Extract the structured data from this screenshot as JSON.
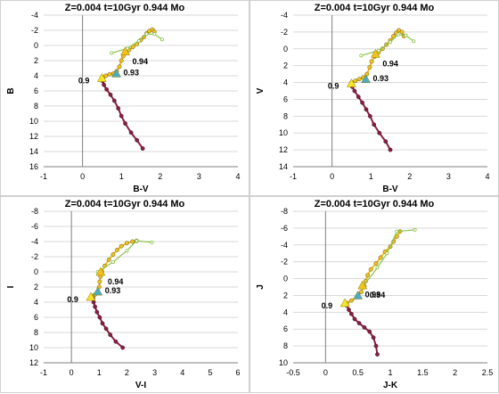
{
  "chart_data": [
    {
      "type": "scatter",
      "title": "Z=0.004  t=10Gyr 0.944 Mo",
      "xlabel": "B-V",
      "ylabel": "B",
      "xlim": [
        -1,
        4
      ],
      "ylim": [
        -4,
        16
      ],
      "y_inverted": true,
      "xticks": [
        -1,
        0,
        1,
        2,
        3,
        4
      ],
      "yticks": [
        -4,
        -2,
        0,
        2,
        4,
        6,
        8,
        10,
        12,
        14,
        16
      ],
      "series": [
        {
          "role": "main_sequence",
          "color": "#8b1e3f",
          "x": [
            1.55,
            1.4,
            1.25,
            1.1,
            1.0,
            0.92,
            0.82,
            0.72,
            0.62,
            0.55,
            0.52,
            0.52
          ],
          "y": [
            13.6,
            12.5,
            11.5,
            10.3,
            9.3,
            8.3,
            7.3,
            6.5,
            5.8,
            5.2,
            4.7,
            4.3
          ]
        },
        {
          "role": "subgiant_giant_branch",
          "color": "#f2c21a",
          "x": [
            0.52,
            0.6,
            0.7,
            0.8,
            0.88,
            0.95,
            1.0,
            1.05,
            1.1,
            1.2,
            1.3,
            1.4,
            1.5,
            1.58,
            1.65,
            1.72,
            1.8,
            1.85
          ],
          "y": [
            4.2,
            4.0,
            3.8,
            3.7,
            3.4,
            2.8,
            2.0,
            1.4,
            1.0,
            0.6,
            0.2,
            -0.2,
            -0.7,
            -1.1,
            -1.6,
            -1.9,
            -2.1,
            -1.8
          ]
        },
        {
          "role": "connector",
          "color": "#8bc34a",
          "x": [
            0.75,
            1.15,
            1.45,
            1.65,
            1.85,
            2.05
          ],
          "y": [
            1.0,
            0.4,
            -0.6,
            -1.5,
            -1.5,
            -0.8
          ]
        }
      ],
      "markers": [
        {
          "label": "0.9",
          "x": 0.5,
          "y": 4.3,
          "shape": "triangle",
          "color": "#f5e427"
        },
        {
          "label": "0.93",
          "x": 0.87,
          "y": 3.7,
          "shape": "triangle",
          "color": "#4bacc6"
        },
        {
          "label": "0.94",
          "x": 1.1,
          "y": 0.8,
          "shape": "triangle",
          "color": "#f2c21a"
        }
      ]
    },
    {
      "type": "scatter",
      "title": "Z=0.004  t=10Gyr 0.944 Mo",
      "xlabel": "B-V",
      "ylabel": "V",
      "xlim": [
        -1,
        4
      ],
      "ylim": [
        -4,
        14
      ],
      "y_inverted": true,
      "xticks": [
        -1,
        0,
        1,
        2,
        3,
        4
      ],
      "yticks": [
        -4,
        -2,
        0,
        2,
        4,
        6,
        8,
        10,
        12,
        14
      ],
      "series": [
        {
          "role": "main_sequence",
          "color": "#8b1e3f",
          "x": [
            1.5,
            1.38,
            1.22,
            1.08,
            0.98,
            0.88,
            0.78,
            0.68,
            0.58,
            0.52,
            0.5
          ],
          "y": [
            12.0,
            11.0,
            10.0,
            9.0,
            8.0,
            7.2,
            6.4,
            5.7,
            5.0,
            4.5,
            4.1
          ]
        },
        {
          "role": "subgiant_giant_branch",
          "color": "#f2c21a",
          "x": [
            0.5,
            0.6,
            0.7,
            0.8,
            0.9,
            0.97,
            1.02,
            1.1,
            1.2,
            1.3,
            1.4,
            1.5,
            1.58,
            1.65,
            1.72,
            1.8,
            1.85
          ],
          "y": [
            4.0,
            3.8,
            3.6,
            3.4,
            3.0,
            2.2,
            1.5,
            0.9,
            0.4,
            0.0,
            -0.5,
            -1.0,
            -1.5,
            -1.9,
            -2.2,
            -2.0,
            -1.5
          ]
        },
        {
          "role": "connector",
          "color": "#8bc34a",
          "x": [
            0.75,
            1.2,
            1.5,
            1.7,
            1.9,
            2.1
          ],
          "y": [
            0.8,
            0.2,
            -0.8,
            -1.7,
            -1.6,
            -0.9
          ]
        }
      ],
      "markers": [
        {
          "label": "0.9",
          "x": 0.5,
          "y": 4.1,
          "shape": "triangle",
          "color": "#f5e427"
        },
        {
          "label": "0.93",
          "x": 0.87,
          "y": 3.6,
          "shape": "triangle",
          "color": "#4bacc6"
        },
        {
          "label": "0.94",
          "x": 1.12,
          "y": 0.6,
          "shape": "triangle",
          "color": "#f2c21a"
        }
      ]
    },
    {
      "type": "scatter",
      "title": "Z=0.004  t=10Gyr 0.944 Mo",
      "xlabel": "V-I",
      "ylabel": "I",
      "xlim": [
        -1,
        6
      ],
      "ylim": [
        -8,
        12
      ],
      "y_inverted": true,
      "xticks": [
        -1,
        0,
        1,
        2,
        3,
        4,
        5,
        6
      ],
      "yticks": [
        -8,
        -6,
        -4,
        -2,
        0,
        2,
        4,
        6,
        8,
        10,
        12
      ],
      "series": [
        {
          "role": "main_sequence",
          "color": "#8b1e3f",
          "x": [
            1.85,
            1.6,
            1.4,
            1.25,
            1.12,
            1.02,
            0.92,
            0.85,
            0.8,
            0.78
          ],
          "y": [
            10.0,
            9.2,
            8.3,
            7.5,
            6.8,
            6.0,
            5.3,
            4.6,
            4.0,
            3.5
          ]
        },
        {
          "role": "subgiant_giant_branch",
          "color": "#f2c21a",
          "x": [
            0.75,
            0.85,
            0.95,
            1.0,
            1.02,
            1.05,
            1.1,
            1.2,
            1.35,
            1.5,
            1.65,
            1.8,
            2.0,
            2.2,
            2.35
          ],
          "y": [
            3.2,
            3.0,
            2.6,
            2.0,
            1.3,
            0.6,
            0.0,
            -0.8,
            -1.6,
            -2.3,
            -2.9,
            -3.4,
            -3.8,
            -4.0,
            -4.1
          ]
        },
        {
          "role": "connector",
          "color": "#8bc34a",
          "x": [
            0.95,
            1.5,
            2.0,
            2.35,
            2.9
          ],
          "y": [
            0.0,
            -1.3,
            -2.8,
            -4.1,
            -3.9
          ]
        }
      ],
      "markers": [
        {
          "label": "0.9",
          "x": 0.7,
          "y": 3.3,
          "shape": "triangle",
          "color": "#f5e427"
        },
        {
          "label": "0.93",
          "x": 0.95,
          "y": 2.6,
          "shape": "triangle",
          "color": "#4bacc6"
        },
        {
          "label": "0.94",
          "x": 1.05,
          "y": 0.0,
          "shape": "triangle",
          "color": "#f2c21a"
        }
      ]
    },
    {
      "type": "scatter",
      "title": "Z=0.004  t=10Gyr 0.944 Mo",
      "xlabel": "J-K",
      "ylabel": "J",
      "xlim": [
        -0.5,
        2.5
      ],
      "ylim": [
        -8,
        10
      ],
      "y_inverted": true,
      "xticks": [
        -0.5,
        0,
        0.5,
        1,
        1.5,
        2,
        2.5
      ],
      "yticks": [
        -8,
        -6,
        -4,
        -2,
        0,
        2,
        4,
        6,
        8,
        10
      ],
      "series": [
        {
          "role": "main_sequence",
          "color": "#8b1e3f",
          "x": [
            0.8,
            0.78,
            0.74,
            0.68,
            0.6,
            0.52,
            0.45,
            0.4,
            0.36,
            0.33
          ],
          "y": [
            9.0,
            8.0,
            7.0,
            6.3,
            5.8,
            5.3,
            4.8,
            4.2,
            3.7,
            3.2
          ]
        },
        {
          "role": "subgiant_giant_branch",
          "color": "#f2c21a",
          "x": [
            0.33,
            0.4,
            0.48,
            0.55,
            0.6,
            0.62,
            0.65,
            0.7,
            0.78,
            0.85,
            0.92,
            1.0,
            1.05,
            1.1,
            1.15
          ],
          "y": [
            2.9,
            2.6,
            2.2,
            1.6,
            0.9,
            0.3,
            -0.4,
            -1.1,
            -1.8,
            -2.5,
            -3.2,
            -3.8,
            -4.4,
            -5.0,
            -5.6
          ]
        },
        {
          "role": "connector",
          "color": "#8bc34a",
          "x": [
            0.58,
            0.8,
            0.95,
            1.1,
            1.38
          ],
          "y": [
            0.9,
            -1.3,
            -3.0,
            -5.6,
            -5.8
          ]
        }
      ],
      "markers": [
        {
          "label": "0.9",
          "x": 0.3,
          "y": 2.9,
          "shape": "triangle",
          "color": "#f5e427"
        },
        {
          "label": "0.93",
          "x": 0.5,
          "y": 2.0,
          "shape": "triangle",
          "color": "#4bacc6"
        },
        {
          "label": "0.94",
          "x": 0.57,
          "y": 0.8,
          "shape": "triangle",
          "color": "#f2c21a"
        }
      ]
    }
  ]
}
